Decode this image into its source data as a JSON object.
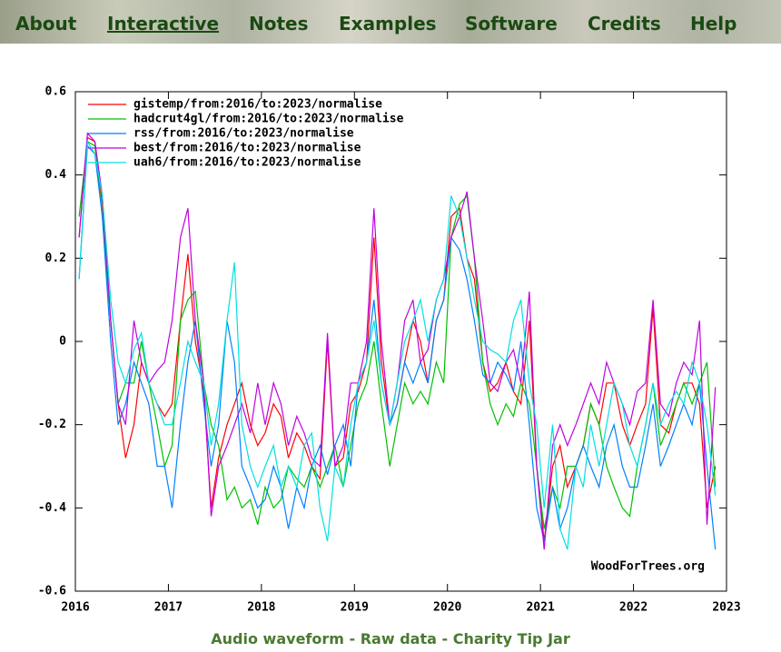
{
  "nav": {
    "items": [
      "About",
      "Interactive",
      "Notes",
      "Examples",
      "Software",
      "Credits",
      "Help"
    ],
    "active": "Interactive"
  },
  "chart_data": {
    "type": "line",
    "x": [
      2016.04,
      2016.13,
      2016.21,
      2016.29,
      2016.38,
      2016.46,
      2016.54,
      2016.63,
      2016.71,
      2016.79,
      2016.88,
      2016.96,
      2017.04,
      2017.13,
      2017.21,
      2017.29,
      2017.38,
      2017.46,
      2017.54,
      2017.63,
      2017.71,
      2017.79,
      2017.88,
      2017.96,
      2018.04,
      2018.13,
      2018.21,
      2018.29,
      2018.38,
      2018.46,
      2018.54,
      2018.63,
      2018.71,
      2018.79,
      2018.88,
      2018.96,
      2019.04,
      2019.13,
      2019.21,
      2019.29,
      2019.38,
      2019.46,
      2019.54,
      2019.63,
      2019.71,
      2019.79,
      2019.88,
      2019.96,
      2020.04,
      2020.13,
      2020.21,
      2020.29,
      2020.38,
      2020.46,
      2020.54,
      2020.63,
      2020.71,
      2020.79,
      2020.88,
      2020.96,
      2021.04,
      2021.13,
      2021.21,
      2021.29,
      2021.38,
      2021.46,
      2021.54,
      2021.63,
      2021.71,
      2021.79,
      2021.88,
      2021.96,
      2022.04,
      2022.13,
      2022.21,
      2022.29,
      2022.38,
      2022.46,
      2022.54,
      2022.63,
      2022.71,
      2022.79,
      2022.88
    ],
    "series": [
      {
        "name": "gistemp/from:2016/to:2023/normalise",
        "color": "#ff0000",
        "values": [
          0.25,
          0.49,
          0.48,
          0.33,
          0.05,
          -0.15,
          -0.28,
          -0.2,
          -0.05,
          -0.1,
          -0.15,
          -0.18,
          -0.15,
          0.05,
          0.21,
          0.0,
          -0.12,
          -0.4,
          -0.28,
          -0.2,
          -0.15,
          -0.1,
          -0.2,
          -0.25,
          -0.22,
          -0.15,
          -0.18,
          -0.28,
          -0.22,
          -0.25,
          -0.3,
          -0.33,
          0.0,
          -0.3,
          -0.28,
          -0.15,
          -0.12,
          -0.05,
          0.25,
          -0.05,
          -0.2,
          -0.15,
          -0.05,
          0.05,
          0.0,
          -0.1,
          0.05,
          0.1,
          0.3,
          0.32,
          0.2,
          0.15,
          -0.05,
          -0.12,
          -0.1,
          -0.05,
          -0.12,
          -0.15,
          0.05,
          -0.3,
          -0.48,
          -0.3,
          -0.25,
          -0.35,
          -0.3,
          -0.25,
          -0.15,
          -0.2,
          -0.1,
          -0.1,
          -0.2,
          -0.25,
          -0.2,
          -0.15,
          0.08,
          -0.2,
          -0.22,
          -0.15,
          -0.1,
          -0.1,
          -0.15,
          -0.4,
          -0.3
        ]
      },
      {
        "name": "hadcrut4gl/from:2016/to:2023/normalise",
        "color": "#00c000",
        "values": [
          0.3,
          0.48,
          0.47,
          0.3,
          0.05,
          -0.15,
          -0.1,
          -0.1,
          0.0,
          -0.1,
          -0.2,
          -0.3,
          -0.25,
          0.05,
          0.1,
          0.12,
          -0.1,
          -0.2,
          -0.25,
          -0.38,
          -0.35,
          -0.4,
          -0.38,
          -0.44,
          -0.35,
          -0.4,
          -0.38,
          -0.3,
          -0.33,
          -0.35,
          -0.3,
          -0.35,
          -0.3,
          -0.25,
          -0.35,
          -0.25,
          -0.15,
          -0.1,
          0.0,
          -0.15,
          -0.3,
          -0.2,
          -0.1,
          -0.15,
          -0.12,
          -0.15,
          -0.05,
          -0.1,
          0.25,
          0.33,
          0.35,
          0.2,
          -0.05,
          -0.15,
          -0.2,
          -0.15,
          -0.18,
          -0.1,
          -0.15,
          -0.3,
          -0.45,
          -0.35,
          -0.4,
          -0.3,
          -0.3,
          -0.25,
          -0.15,
          -0.2,
          -0.3,
          -0.35,
          -0.4,
          -0.42,
          -0.3,
          -0.2,
          -0.1,
          -0.25,
          -0.2,
          -0.15,
          -0.1,
          -0.15,
          -0.1,
          -0.05,
          -0.35
        ]
      },
      {
        "name": "rss/from:2016/to:2023/normalise",
        "color": "#0080ff",
        "values": [
          0.15,
          0.47,
          0.45,
          0.3,
          0.0,
          -0.2,
          -0.15,
          -0.05,
          -0.1,
          -0.15,
          -0.3,
          -0.3,
          -0.4,
          -0.2,
          -0.05,
          0.05,
          -0.15,
          -0.3,
          -0.2,
          0.05,
          -0.05,
          -0.3,
          -0.35,
          -0.4,
          -0.38,
          -0.3,
          -0.35,
          -0.45,
          -0.35,
          -0.4,
          -0.3,
          -0.25,
          -0.32,
          -0.25,
          -0.2,
          -0.3,
          -0.1,
          -0.05,
          0.1,
          -0.1,
          -0.2,
          -0.15,
          -0.05,
          -0.1,
          -0.05,
          -0.1,
          0.05,
          0.1,
          0.25,
          0.22,
          0.15,
          0.05,
          -0.08,
          -0.1,
          -0.05,
          -0.08,
          -0.12,
          0.0,
          -0.2,
          -0.4,
          -0.48,
          -0.35,
          -0.45,
          -0.4,
          -0.3,
          -0.25,
          -0.3,
          -0.35,
          -0.25,
          -0.2,
          -0.3,
          -0.35,
          -0.35,
          -0.25,
          -0.15,
          -0.3,
          -0.25,
          -0.2,
          -0.15,
          -0.2,
          -0.1,
          -0.3,
          -0.5
        ]
      },
      {
        "name": "best/from:2016/to:2023/normalise",
        "color": "#c000e0",
        "values": [
          0.25,
          0.5,
          0.48,
          0.35,
          0.05,
          -0.15,
          -0.2,
          0.05,
          -0.05,
          -0.1,
          -0.07,
          -0.05,
          0.05,
          0.25,
          0.32,
          0.05,
          -0.1,
          -0.42,
          -0.3,
          -0.25,
          -0.2,
          -0.15,
          -0.22,
          -0.1,
          -0.2,
          -0.1,
          -0.15,
          -0.25,
          -0.18,
          -0.22,
          -0.28,
          -0.3,
          0.02,
          -0.3,
          -0.25,
          -0.1,
          -0.1,
          0.0,
          0.32,
          0.0,
          -0.2,
          -0.1,
          0.05,
          0.1,
          -0.05,
          -0.02,
          0.1,
          0.15,
          0.25,
          0.3,
          0.36,
          0.2,
          0.05,
          -0.1,
          -0.12,
          -0.05,
          -0.02,
          -0.1,
          0.12,
          -0.3,
          -0.5,
          -0.25,
          -0.2,
          -0.25,
          -0.2,
          -0.15,
          -0.1,
          -0.15,
          -0.05,
          -0.1,
          -0.15,
          -0.2,
          -0.12,
          -0.1,
          0.1,
          -0.15,
          -0.18,
          -0.1,
          -0.05,
          -0.08,
          0.05,
          -0.44,
          -0.11
        ]
      },
      {
        "name": "uah6/from:2016/to:2023/normalise",
        "color": "#00e0e0",
        "values": [
          0.15,
          0.48,
          0.45,
          0.35,
          0.1,
          -0.05,
          -0.1,
          -0.02,
          0.02,
          -0.1,
          -0.15,
          -0.2,
          -0.2,
          -0.1,
          0.0,
          -0.05,
          -0.1,
          -0.25,
          -0.15,
          0.05,
          0.19,
          -0.2,
          -0.3,
          -0.35,
          -0.3,
          -0.25,
          -0.35,
          -0.3,
          -0.35,
          -0.25,
          -0.22,
          -0.4,
          -0.48,
          -0.3,
          -0.35,
          -0.2,
          -0.1,
          -0.05,
          0.05,
          -0.1,
          -0.2,
          -0.1,
          0.0,
          0.05,
          0.1,
          0.0,
          0.1,
          0.15,
          0.35,
          0.3,
          0.2,
          0.1,
          0.0,
          -0.02,
          -0.03,
          -0.05,
          0.05,
          0.1,
          -0.1,
          -0.2,
          -0.4,
          -0.2,
          -0.45,
          -0.5,
          -0.3,
          -0.35,
          -0.2,
          -0.3,
          -0.2,
          -0.1,
          -0.15,
          -0.25,
          -0.3,
          -0.2,
          -0.1,
          -0.2,
          -0.15,
          -0.12,
          -0.15,
          -0.05,
          -0.1,
          -0.2,
          -0.37
        ]
      }
    ],
    "xlim": [
      2016,
      2023
    ],
    "xticks": [
      2016,
      2017,
      2018,
      2019,
      2020,
      2021,
      2022,
      2023
    ],
    "ylim": [
      -0.6,
      0.6
    ],
    "yticks": [
      -0.6,
      -0.4,
      -0.2,
      0,
      0.2,
      0.4,
      0.6
    ],
    "legend": "top-left",
    "annotation": "WoodForTrees.org"
  },
  "footer": {
    "links": [
      "Audio waveform",
      "Raw data",
      "Charity Tip Jar"
    ],
    "separator": "-"
  }
}
